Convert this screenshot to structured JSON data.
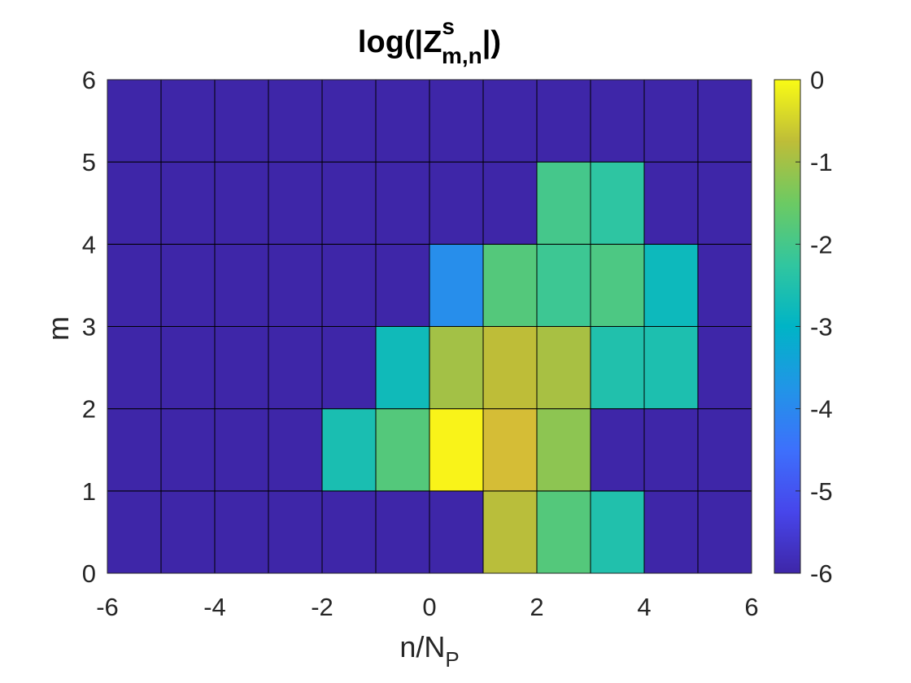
{
  "chart_data": {
    "type": "heatmap",
    "title": {
      "prefix": "log(|Z",
      "superscript": "s",
      "subscript": "m,n",
      "suffix": "|)"
    },
    "xlabel": {
      "main": "n/N",
      "subscript": "P"
    },
    "ylabel": "m",
    "xlim": [
      -6,
      6
    ],
    "ylim": [
      0,
      6
    ],
    "x_ticks": [
      -6,
      -4,
      -2,
      0,
      2,
      4,
      6
    ],
    "y_ticks": [
      0,
      1,
      2,
      3,
      4,
      5,
      6
    ],
    "x_edges": [
      -6,
      -5,
      -4,
      -3,
      -2,
      -1,
      0,
      1,
      2,
      3,
      4,
      5,
      6
    ],
    "y_edges": [
      0,
      1,
      2,
      3,
      4,
      5,
      6
    ],
    "colormap": "parula",
    "clim": [
      -6,
      0
    ],
    "colorbar_ticks": [
      0,
      -1,
      -2,
      -3,
      -4,
      -5,
      -6
    ],
    "colorbar_location": "right",
    "values_by_row_m0_to_m5": [
      [
        -6,
        -6,
        -6,
        -6,
        -6,
        -6,
        -6,
        -0.8,
        -1.8,
        -2.5,
        -6,
        -6
      ],
      [
        -6,
        -6,
        -6,
        -6,
        -2.6,
        -1.8,
        -0.05,
        -0.6,
        -1.2,
        -6,
        -6,
        -6
      ],
      [
        -6,
        -6,
        -6,
        -6,
        -6,
        -2.75,
        -1.0,
        -0.75,
        -0.95,
        -2.5,
        -2.55,
        -6
      ],
      [
        -6,
        -6,
        -6,
        -6,
        -6,
        -6,
        -3.9,
        -1.8,
        -2.1,
        -1.9,
        -2.8,
        -6
      ],
      [
        -6,
        -6,
        -6,
        -6,
        -6,
        -6,
        -6,
        -6,
        -2.0,
        -2.3,
        -6,
        -6
      ],
      [
        -6,
        -6,
        -6,
        -6,
        -6,
        -6,
        -6,
        -6,
        -6,
        -6,
        -6,
        -6
      ]
    ]
  }
}
